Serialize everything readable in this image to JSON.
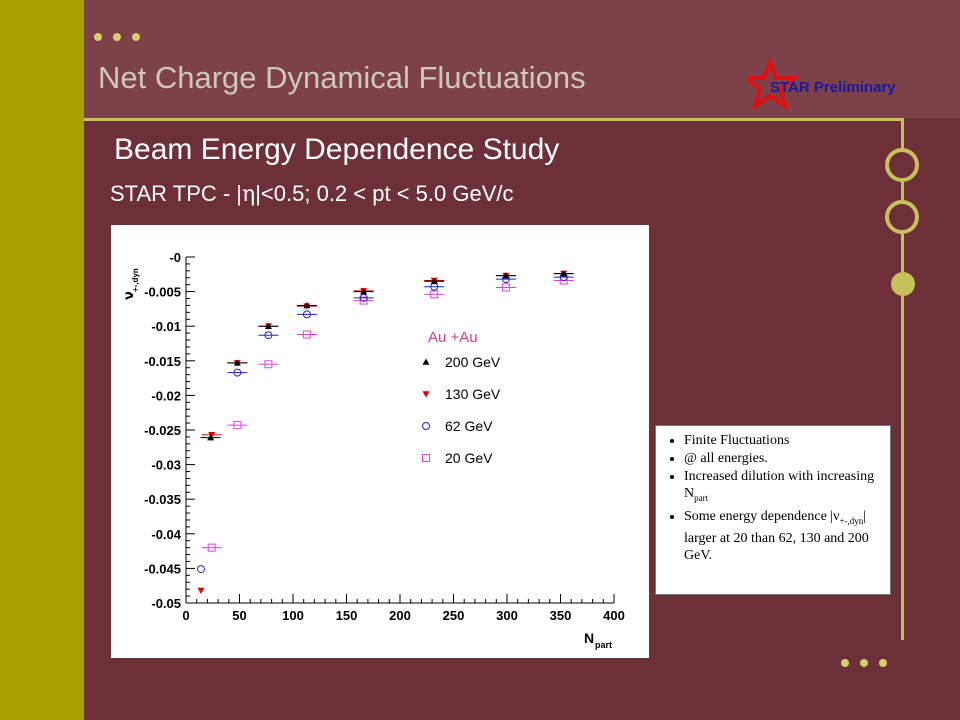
{
  "slide": {
    "title": "Net Charge Dynamical Fluctuations",
    "subtitle": "Beam Energy Dependence Study",
    "cuts": {
      "prefix": "STAR TPC - |",
      "eta": "η",
      "suffix": "|<0.5; 0.2 < pt < 5.0 GeV/c"
    },
    "logo_text": "STAR Preliminary"
  },
  "bullets": [
    {
      "text": "Finite Fluctuations"
    },
    {
      "text": "@ all energies."
    },
    {
      "text": "Increased dilution with increasing N",
      "sub": "part"
    },
    {
      "pre": "Some energy dependence |ν",
      "sub": "+-,dyn",
      "post": "| larger at 20 than 62, 130 and 200 GeV."
    }
  ],
  "chart_data": {
    "type": "scatter",
    "title": "",
    "xlabel": "N",
    "xlabel_sub": "part",
    "ylabel": "ν",
    "ylabel_sub": "+-,dyn",
    "xlim": [
      0,
      400
    ],
    "ylim": [
      -0.05,
      0
    ],
    "x_ticks": [
      "0",
      "50",
      "100",
      "150",
      "200",
      "250",
      "300",
      "350",
      "400"
    ],
    "y_ticks": [
      "-0",
      "-0.005",
      "-0.01",
      "-0.015",
      "-0.02",
      "-0.025",
      "-0.03",
      "-0.035",
      "-0.04",
      "-0.045",
      "-0.05"
    ],
    "grid": false,
    "legend": {
      "title": "Au +Au",
      "placement": "center-right"
    },
    "series": [
      {
        "name": "200 GeV",
        "marker": "triangle-up",
        "color": "#000000",
        "x": [
          23,
          48,
          77,
          113,
          166,
          232,
          299,
          353
        ],
        "y": [
          -0.0261,
          -0.0153,
          -0.01,
          -0.007,
          -0.005,
          -0.0035,
          -0.0027,
          -0.0024
        ]
      },
      {
        "name": "130 GeV",
        "marker": "triangle-down",
        "color": "#e00000",
        "x": [
          14,
          24,
          48,
          77,
          113,
          166,
          232,
          299,
          353
        ],
        "y": [
          -0.0482,
          -0.0257,
          -0.0153,
          -0.01,
          -0.0071,
          -0.0049,
          -0.0034,
          -0.0027,
          -0.0024
        ]
      },
      {
        "name": "62 GeV",
        "marker": "circle-open",
        "color": "#2020d0",
        "x": [
          14,
          48,
          77,
          113,
          166,
          232,
          299,
          353
        ],
        "y": [
          -0.0451,
          -0.0167,
          -0.0113,
          -0.0083,
          -0.0059,
          -0.0043,
          -0.0032,
          -0.0029
        ]
      },
      {
        "name": "20 GeV",
        "marker": "square-open",
        "color": "#e040e0",
        "x": [
          24,
          48,
          77,
          113,
          166,
          232,
          299,
          353
        ],
        "y": [
          -0.042,
          -0.0243,
          -0.0155,
          -0.0112,
          -0.0063,
          -0.0054,
          -0.0044,
          -0.0034
        ]
      }
    ]
  }
}
